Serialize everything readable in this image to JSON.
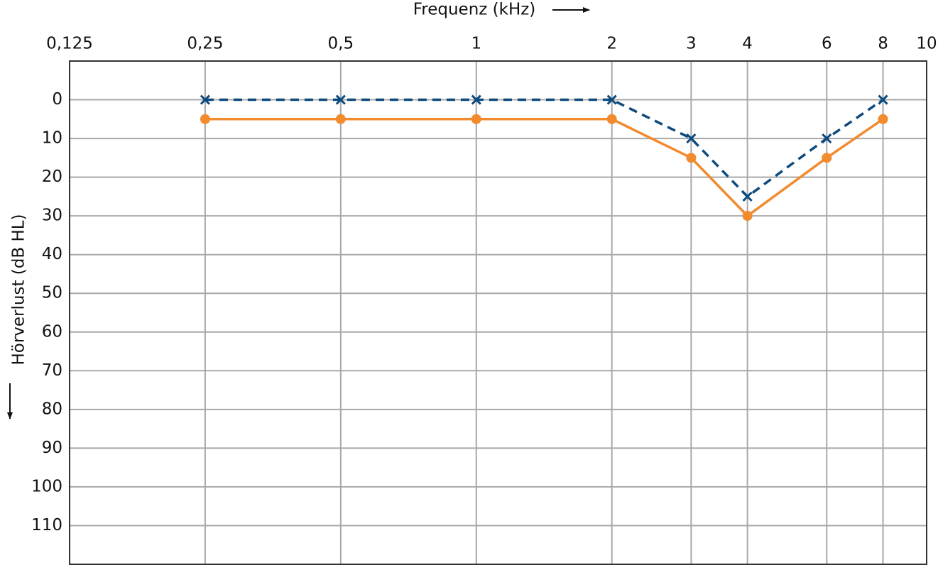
{
  "chart_data": {
    "type": "line",
    "x_label": "Frequenz (kHz)",
    "y_label": "Hörverlust (dB HL)",
    "xscale": "log",
    "y_inverted": true,
    "grid": true,
    "xlim": [
      0.125,
      10
    ],
    "xticks": [
      {
        "value": 0.125,
        "label": "0,125"
      },
      {
        "value": 0.25,
        "label": "0,25"
      },
      {
        "value": 0.5,
        "label": "0,5"
      },
      1,
      2,
      3,
      4,
      6,
      8,
      10
    ],
    "ylim": [
      -10,
      120
    ],
    "yticks": [
      0,
      10,
      20,
      30,
      40,
      50,
      60,
      70,
      80,
      90,
      100,
      110
    ],
    "x": [
      0.25,
      0.5,
      1,
      2,
      3,
      4,
      6,
      8
    ],
    "series": [
      {
        "color": "#0d4a7e",
        "marker": "x",
        "dashed": true,
        "values": [
          0,
          0,
          0,
          0,
          10,
          25,
          10,
          0
        ]
      },
      {
        "color": "#f28a2e",
        "marker": "o",
        "dashed": false,
        "values": [
          5,
          5,
          5,
          5,
          15,
          30,
          15,
          5
        ]
      }
    ]
  }
}
